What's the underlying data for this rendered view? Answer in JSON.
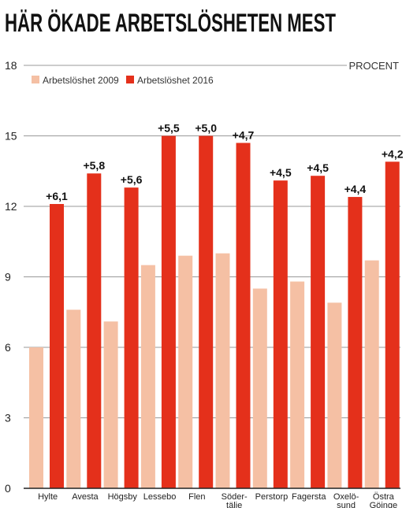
{
  "chart_data": {
    "type": "bar",
    "title": "HÄR ÖKADE ARBETSLÖSHETEN MEST",
    "unit_label": "PROCENT",
    "categories": [
      [
        "Hylte"
      ],
      [
        "Avesta"
      ],
      [
        "Högsby"
      ],
      [
        "Lessebo"
      ],
      [
        "Flen"
      ],
      [
        "Söder-",
        "tälje"
      ],
      [
        "Perstorp"
      ],
      [
        "Fagersta"
      ],
      [
        "Oxelö-",
        "sund"
      ],
      [
        "Östra",
        "Göinge"
      ]
    ],
    "series": [
      {
        "name": "Arbetslöshet 2009",
        "color": "#f5c0a4",
        "values": [
          6.0,
          7.6,
          7.1,
          9.5,
          9.9,
          10.0,
          8.5,
          8.8,
          7.9,
          9.7
        ]
      },
      {
        "name": "Arbetslöshet 2016",
        "color": "#e4301b",
        "values": [
          12.1,
          13.4,
          12.8,
          15.0,
          15.0,
          14.7,
          13.1,
          13.3,
          12.4,
          13.9
        ]
      }
    ],
    "data_labels": [
      "+6,1",
      "+5,8",
      "+5,6",
      "+5,5",
      "+5,0",
      "+4,7",
      "+4,5",
      "+4,5",
      "+4,4",
      "+4,2"
    ],
    "y_ticks": [
      "0",
      "3",
      "6",
      "9",
      "12",
      "15",
      "18"
    ],
    "ylim": [
      0,
      18
    ],
    "grid": true,
    "legend_position": "top-left"
  }
}
